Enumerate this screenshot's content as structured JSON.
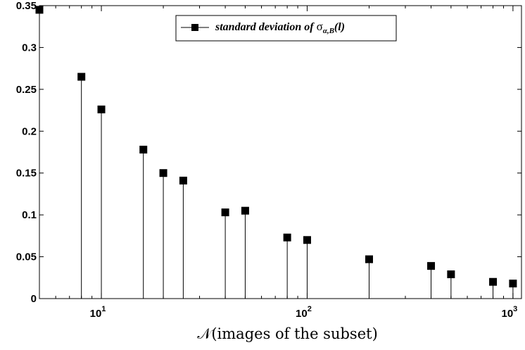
{
  "chart_data": {
    "type": "scatter",
    "style": "stem",
    "x_scale": "log",
    "xlim": [
      5,
      1100
    ],
    "ylim": [
      0,
      0.35
    ],
    "grid": false,
    "legend_position": "top-center",
    "xlabel_script": "𝒩",
    "xlabel_text": "(images of the subset)",
    "ylabel": "",
    "title": "",
    "y_ticks": [
      "0",
      "0.05",
      "0.1",
      "0.15",
      "0.2",
      "0.25",
      "0.3",
      "0.35"
    ],
    "x_ticks": [
      {
        "base": "10",
        "exp": "1"
      },
      {
        "base": "10",
        "exp": "2"
      },
      {
        "base": "10",
        "exp": "3"
      }
    ],
    "legend": {
      "prefix": "standard deviation of ",
      "symbol": "σ",
      "subscript": "α,B",
      "suffix": "(l)"
    },
    "series": [
      {
        "x": [
          5,
          8,
          10,
          16,
          20,
          25,
          40,
          50,
          80,
          100,
          200,
          400,
          500,
          800,
          1000
        ],
        "y": [
          0.345,
          0.265,
          0.226,
          0.178,
          0.15,
          0.141,
          0.103,
          0.105,
          0.073,
          0.07,
          0.047,
          0.039,
          0.029,
          0.02,
          0.018
        ]
      }
    ]
  }
}
